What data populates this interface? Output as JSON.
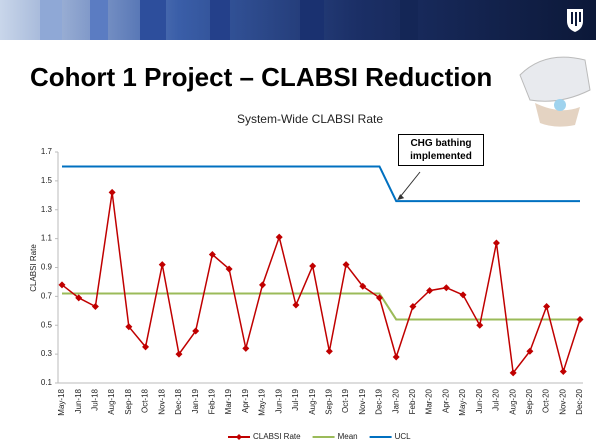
{
  "slide_title": "Cohort 1 Project – CLABSI Reduction",
  "chart_data": {
    "type": "line",
    "title": "System-Wide CLABSI Rate",
    "y_label": "CLABSI Rate",
    "annotation": "CHG bathing implemented",
    "categories": [
      "May-18",
      "Jun-18",
      "Jul-18",
      "Aug-18",
      "Sep-18",
      "Oct-18",
      "Nov-18",
      "Dec-18",
      "Jan-19",
      "Feb-19",
      "Mar-19",
      "Apr-19",
      "May-19",
      "Jun-19",
      "Jul-19",
      "Aug-19",
      "Sep-19",
      "Oct-19",
      "Nov-19",
      "Dec-19",
      "Jan-20",
      "Feb-20",
      "Mar-20",
      "Apr-20",
      "May-20",
      "Jun-20",
      "Jul-20",
      "Aug-20",
      "Sep-20",
      "Oct-20",
      "Nov-20",
      "Dec-20"
    ],
    "series": [
      {
        "name": "CLABSI Rate",
        "color": "#c00000",
        "marker": "diamond",
        "values": [
          0.78,
          0.69,
          0.63,
          1.42,
          0.49,
          0.35,
          0.92,
          0.3,
          0.46,
          0.99,
          0.89,
          0.34,
          0.78,
          1.11,
          0.64,
          0.91,
          0.32,
          0.92,
          0.77,
          0.69,
          0.28,
          0.63,
          0.74,
          0.76,
          0.71,
          0.5,
          1.07,
          0.17,
          0.32,
          0.63,
          0.18,
          0.54
        ]
      },
      {
        "name": "Mean",
        "color": "#9bbb59",
        "values": [
          0.72,
          0.72,
          0.72,
          0.72,
          0.72,
          0.72,
          0.72,
          0.72,
          0.72,
          0.72,
          0.72,
          0.72,
          0.72,
          0.72,
          0.72,
          0.72,
          0.72,
          0.72,
          0.72,
          0.72,
          0.54,
          0.54,
          0.54,
          0.54,
          0.54,
          0.54,
          0.54,
          0.54,
          0.54,
          0.54,
          0.54,
          0.54
        ]
      },
      {
        "name": "UCL",
        "color": "#0070c0",
        "values": [
          1.6,
          1.6,
          1.6,
          1.6,
          1.6,
          1.6,
          1.6,
          1.6,
          1.6,
          1.6,
          1.6,
          1.6,
          1.6,
          1.6,
          1.6,
          1.6,
          1.6,
          1.6,
          1.6,
          1.6,
          1.36,
          1.36,
          1.36,
          1.36,
          1.36,
          1.36,
          1.36,
          1.36,
          1.36,
          1.36,
          1.36,
          1.36
        ]
      }
    ],
    "ylim": [
      0.1,
      1.7
    ],
    "yticks": [
      0.1,
      0.3,
      0.5,
      0.7,
      0.9,
      1.1,
      1.3,
      1.5,
      1.7
    ],
    "grid": false,
    "legend": "bottom"
  }
}
